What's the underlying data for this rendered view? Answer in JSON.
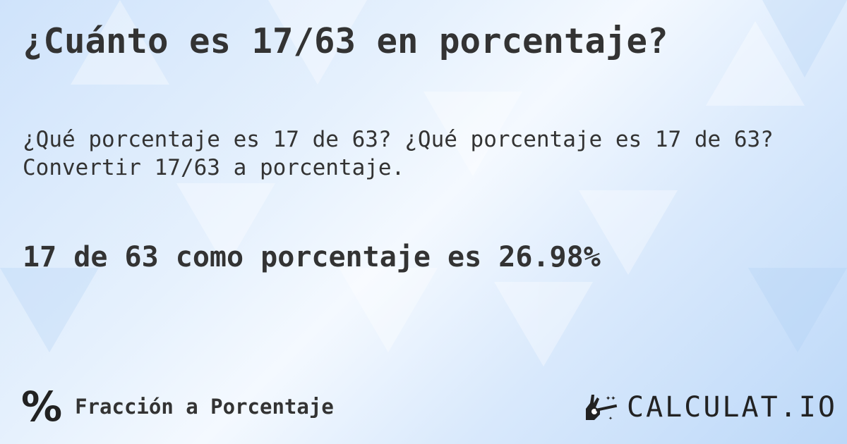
{
  "title": "¿Cuánto es 17/63 en porcentaje?",
  "subtitle": "¿Qué porcentaje es 17 de 63? ¿Qué porcentaje es 17 de 63? Convertir 17/63 a porcentaje.",
  "result": "17 de 63 como porcentaje es 26.98%",
  "category": {
    "icon": "percent-icon",
    "symbol": "%",
    "label": "Fracción a Porcentaje"
  },
  "logo": {
    "icon": "magic-hand-icon",
    "text": "CALCULAT.IO"
  },
  "colors": {
    "background": "#d6e8fc",
    "text": "#333333"
  }
}
